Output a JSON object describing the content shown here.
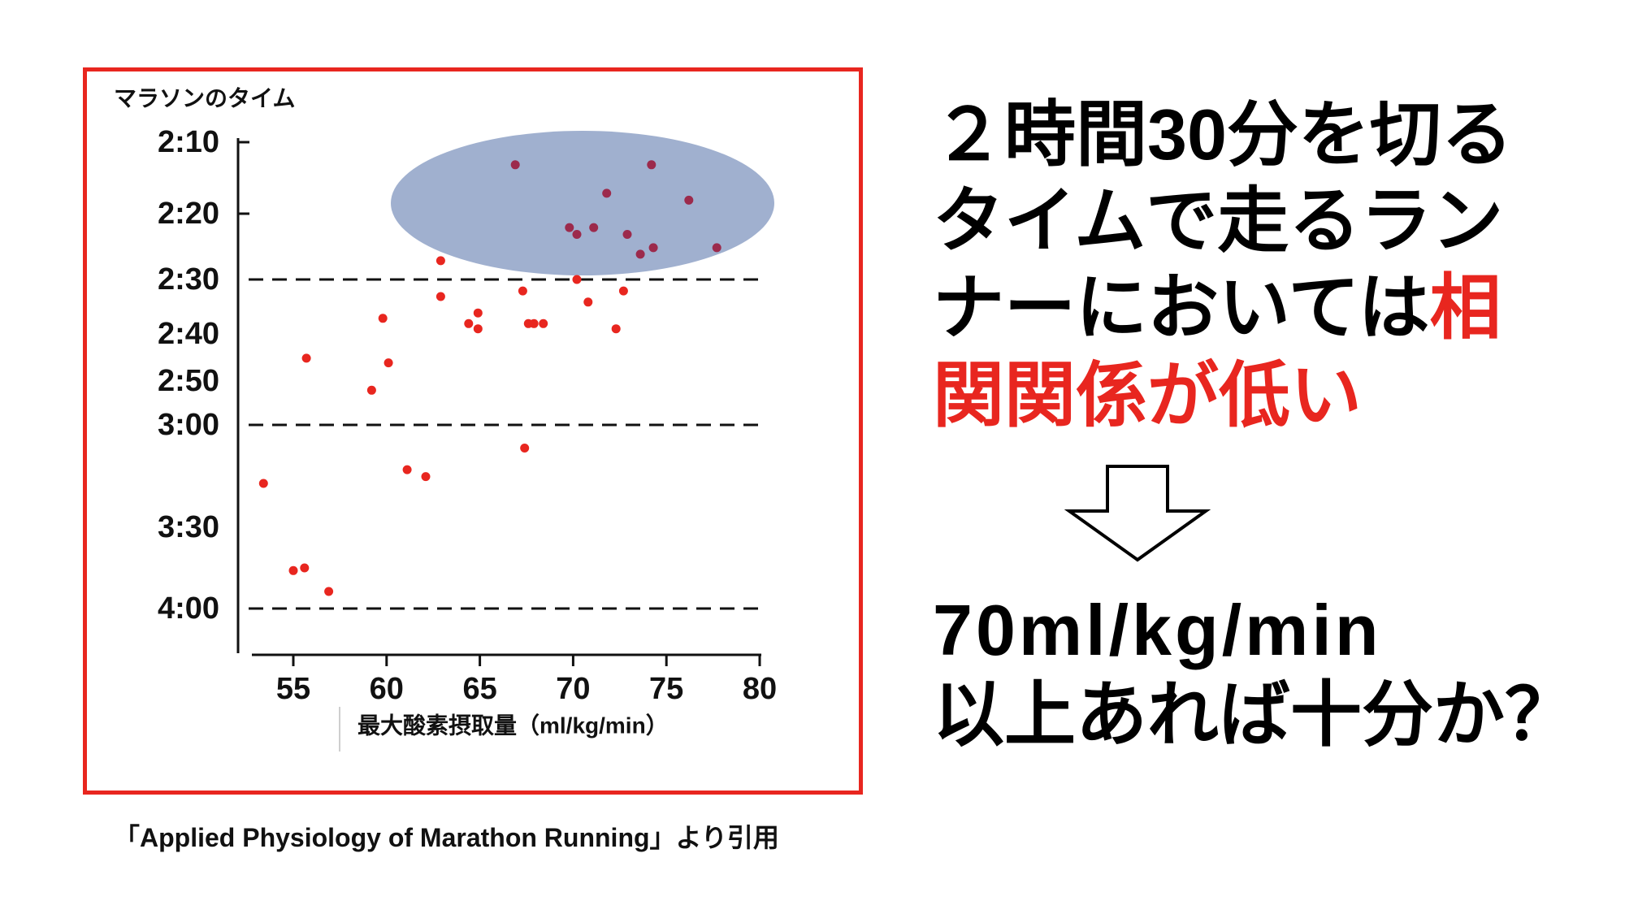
{
  "colors": {
    "emphasis": "#e8261f",
    "frame": "#e8261f",
    "point": "#e8261f",
    "highlighted_point": "#9c2a4c",
    "highlight_ellipse": "#a0b0cf",
    "axis": "#111111"
  },
  "message": {
    "line1": "２時間30分を切る",
    "line2": "タイムで走るラン",
    "line3": "ナーにおいては",
    "line3_emphasis": "相",
    "line4_emphasis": "関関係が低い"
  },
  "arrow_icon": "down-arrow-outline-icon",
  "conclusion": {
    "line1": "70ml/kg/min",
    "line2": "以上あれば十分か？"
  },
  "citation": "「Applied Physiology of Marathon Running」より引用",
  "chart_data": {
    "type": "scatter",
    "title": "",
    "ylabel": "マラソンのタイム",
    "xlabel": "最大酸素摂取量（ml/kg/min）",
    "x_ticks": [
      55,
      60,
      65,
      70,
      75,
      80
    ],
    "y_ticks": [
      "2:10",
      "2:20",
      "2:30",
      "2:40",
      "2:50",
      "3:00",
      "3:30",
      "4:00"
    ],
    "xlim": [
      53,
      80
    ],
    "ylim": [
      "2:10",
      "4:20"
    ],
    "y_scale": "reciprocal",
    "reference_lines_y": [
      "2:30",
      "3:00",
      "4:00"
    ],
    "grid": false,
    "points": [
      {
        "x": 66.9,
        "y": "2:13"
      },
      {
        "x": 74.2,
        "y": "2:13"
      },
      {
        "x": 71.8,
        "y": "2:17"
      },
      {
        "x": 76.2,
        "y": "2:18"
      },
      {
        "x": 69.8,
        "y": "2:22"
      },
      {
        "x": 70.2,
        "y": "2:23"
      },
      {
        "x": 71.1,
        "y": "2:22"
      },
      {
        "x": 72.9,
        "y": "2:23"
      },
      {
        "x": 74.3,
        "y": "2:25"
      },
      {
        "x": 73.6,
        "y": "2:26"
      },
      {
        "x": 77.7,
        "y": "2:25"
      },
      {
        "x": 62.9,
        "y": "2:27"
      },
      {
        "x": 67.3,
        "y": "2:32"
      },
      {
        "x": 70.2,
        "y": "2:30"
      },
      {
        "x": 72.7,
        "y": "2:32"
      },
      {
        "x": 62.9,
        "y": "2:33"
      },
      {
        "x": 70.8,
        "y": "2:34"
      },
      {
        "x": 59.8,
        "y": "2:37"
      },
      {
        "x": 64.9,
        "y": "2:36"
      },
      {
        "x": 64.4,
        "y": "2:38"
      },
      {
        "x": 64.9,
        "y": "2:39"
      },
      {
        "x": 67.6,
        "y": "2:38"
      },
      {
        "x": 67.9,
        "y": "2:38"
      },
      {
        "x": 68.4,
        "y": "2:38"
      },
      {
        "x": 72.3,
        "y": "2:39"
      },
      {
        "x": 55.7,
        "y": "2:45"
      },
      {
        "x": 60.1,
        "y": "2:46"
      },
      {
        "x": 59.2,
        "y": "2:52"
      },
      {
        "x": 67.4,
        "y": "3:06"
      },
      {
        "x": 61.1,
        "y": "3:12"
      },
      {
        "x": 62.1,
        "y": "3:14"
      },
      {
        "x": 53.4,
        "y": "3:16"
      },
      {
        "x": 55.0,
        "y": "3:45"
      },
      {
        "x": 55.6,
        "y": "3:44"
      },
      {
        "x": 56.9,
        "y": "3:53"
      }
    ]
  }
}
